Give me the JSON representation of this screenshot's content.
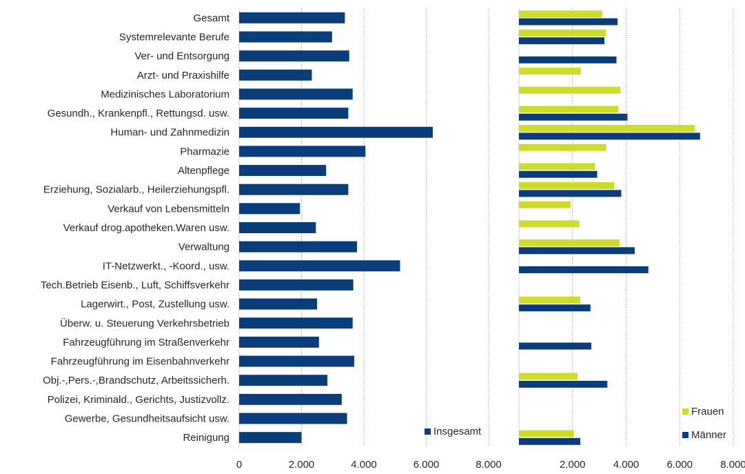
{
  "chart_data": {
    "type": "bar",
    "orientation": "horizontal",
    "categories": [
      "Gesamt",
      "Systemrelevante Berufe",
      "Ver- und Entsorgung",
      "Arzt- und Praxishilfe",
      "Medizinisches Laboratorium",
      "Gesundh., Krankenpfl., Rettungsd. usw.",
      "Human- und Zahnmedizin",
      "Pharmazie",
      "Altenpflege",
      "Erziehung, Sozialarb., Heilerziehungspfl.",
      "Verkauf von Lebensmitteln",
      "Verkauf drog.apotheken.Waren usw.",
      "Verwaltung",
      "IT-Netzwerkt., -Koord., usw.",
      "Tech.Betrieb Eisenb., Luft, Schiffsverkehr",
      "Lagerwirt., Post, Zustellung usw.",
      "Überw. u. Steuerung Verkehrsbetrieb",
      "Fahrzeugführung im Straßenverkehr",
      "Fahrzeugführung im Eisenbahnverkehr",
      "Obj.-,Pers.-,Brandschutz, Arbeitssicherh.",
      "Polizei, Kriminald., Gerichts, Justizvollz.",
      "Gewerbe, Gesundheitsaufsicht usw.",
      "Reinigung"
    ],
    "panels": [
      {
        "id": "left",
        "xlim": [
          0,
          8000
        ],
        "ticks": [
          0,
          2000,
          4000,
          6000,
          8000
        ],
        "tick_labels": [
          "0",
          "2.000",
          "4.000",
          "6.000",
          "8.000"
        ],
        "series": [
          {
            "name": "Insgesamt",
            "color": "#0a3d7a",
            "values": [
              3390,
              2980,
              3530,
              2330,
              3640,
              3500,
              6210,
              4050,
              2790,
              3500,
              1950,
              2460,
              3780,
              5160,
              3660,
              2500,
              3640,
              2560,
              3690,
              2830,
              3290,
              3460,
              2000
            ]
          }
        ]
      },
      {
        "id": "right",
        "xlim": [
          0,
          8000
        ],
        "ticks": [
          2000,
          4000,
          6000,
          8000
        ],
        "tick_labels": [
          "2.000",
          "4.000",
          "6.000",
          "8.000"
        ],
        "series": [
          {
            "name": "Frauen",
            "color": "#cddc29",
            "values": [
              3110,
              3250,
              null,
              2310,
              3790,
              3710,
              6570,
              3260,
              2830,
              3560,
              1930,
              2250,
              3760,
              null,
              null,
              2290,
              null,
              null,
              null,
              2190,
              null,
              null,
              2050
            ]
          },
          {
            "name": "Männer",
            "color": "#0a3d7a",
            "values": [
              3680,
              3190,
              3640,
              null,
              null,
              4050,
              6760,
              null,
              2920,
              3820,
              null,
              null,
              4320,
              4830,
              null,
              2670,
              null,
              2700,
              null,
              3300,
              null,
              null,
              2290
            ]
          }
        ]
      }
    ],
    "legend": [
      {
        "panel": "left",
        "name": "Insgesamt",
        "color": "#0a3d7a",
        "position": "bottom-right"
      },
      {
        "panel": "right",
        "name": "Frauen",
        "color": "#cddc29",
        "position": "bottom-right"
      },
      {
        "panel": "right",
        "name": "Männer",
        "color": "#0a3d7a",
        "position": "bottom-right"
      }
    ],
    "grid": "vertical-dotted"
  }
}
